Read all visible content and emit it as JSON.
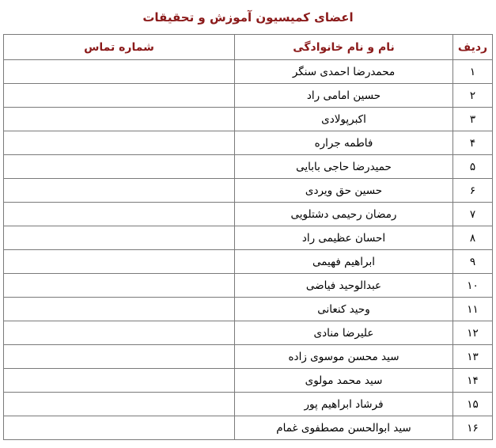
{
  "page": {
    "title": "اعضای کمیسیون آموزش و تحقیقات",
    "title_color": "#8B1A1A",
    "border_color": "#7A7A7A",
    "body_text_color": "#000000",
    "background_color": "#FFFFFF"
  },
  "table": {
    "headers": {
      "row_number": "ردیف",
      "full_name": "نام و نام خانوادگی",
      "contact_number": "شماره تماس"
    },
    "rows": [
      {
        "num": "۱",
        "name": "محمدرضا احمدی سنگر",
        "contact": ""
      },
      {
        "num": "۲",
        "name": "حسین امامی راد",
        "contact": ""
      },
      {
        "num": "۳",
        "name": "اکبرپولادی",
        "contact": ""
      },
      {
        "num": "۴",
        "name": "فاطمه جراره",
        "contact": ""
      },
      {
        "num": "۵",
        "name": "حمیدرضا حاجی بابایی",
        "contact": ""
      },
      {
        "num": "۶",
        "name": "حسین حق ویردی",
        "contact": ""
      },
      {
        "num": "۷",
        "name": "رمضان رحیمی دشتلویی",
        "contact": ""
      },
      {
        "num": "۸",
        "name": "احسان عظیمی راد",
        "contact": ""
      },
      {
        "num": "۹",
        "name": "ابراهیم فهیمی",
        "contact": ""
      },
      {
        "num": "۱۰",
        "name": "عبدالوحید فیاضی",
        "contact": ""
      },
      {
        "num": "۱۱",
        "name": "وحید کنعانی",
        "contact": ""
      },
      {
        "num": "۱۲",
        "name": "علیرضا منادی",
        "contact": ""
      },
      {
        "num": "۱۳",
        "name": "سید محسن موسوی زاده",
        "contact": ""
      },
      {
        "num": "۱۴",
        "name": "سید محمد مولوی",
        "contact": ""
      },
      {
        "num": "۱۵",
        "name": "فرشاد ابراهیم پور",
        "contact": ""
      },
      {
        "num": "۱۶",
        "name": "سید ابوالحسن مصطفوی غمام",
        "contact": ""
      }
    ]
  }
}
